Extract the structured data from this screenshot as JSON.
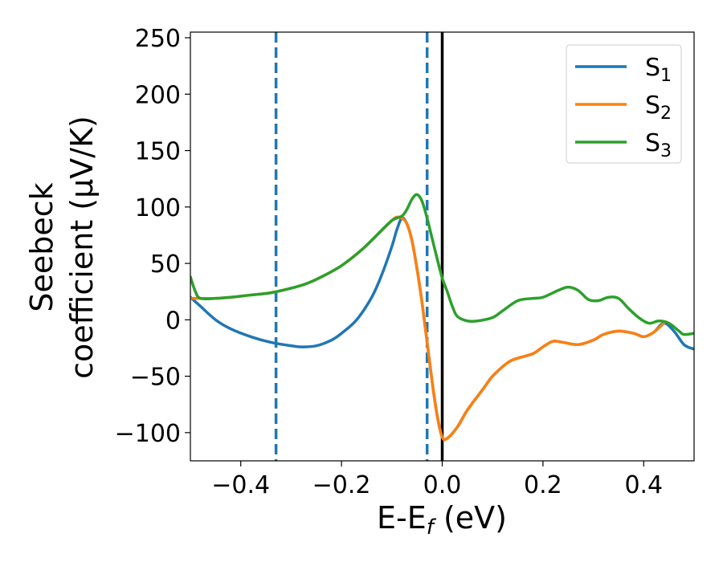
{
  "chart_data": {
    "type": "line",
    "xlabel_main": "E-E",
    "xlabel_sub": "f",
    "xlabel_unit": " (eV)",
    "ylabel_line1": "Seebeck",
    "ylabel_line2": "coefficient  (μV/K)",
    "xlim": [
      -0.5,
      0.5
    ],
    "ylim": [
      -125,
      255
    ],
    "xticks": [
      -0.4,
      -0.2,
      0.0,
      0.2,
      0.4
    ],
    "xtick_labels": [
      "−0.4",
      "−0.2",
      "0.0",
      "0.2",
      "0.4"
    ],
    "yticks": [
      -100,
      -50,
      0,
      50,
      100,
      150,
      200,
      250
    ],
    "ytick_labels": [
      "−100",
      "−50",
      "0",
      "50",
      "100",
      "150",
      "200",
      "250"
    ],
    "grid": false,
    "legend_position": "top-right",
    "vlines": [
      {
        "x": -0.33,
        "style": "dashed",
        "color": "#1f77b4"
      },
      {
        "x": -0.03,
        "style": "dashed",
        "color": "#1f77b4"
      },
      {
        "x": 0.0,
        "style": "solid",
        "color": "#000000"
      }
    ],
    "series": [
      {
        "name_main": "S",
        "name_sub": "1",
        "color": "#1f77b4",
        "points": [
          [
            -0.5,
            20
          ],
          [
            -0.48,
            12
          ],
          [
            -0.45,
            0
          ],
          [
            -0.42,
            -8
          ],
          [
            -0.38,
            -15
          ],
          [
            -0.34,
            -20
          ],
          [
            -0.3,
            -23
          ],
          [
            -0.28,
            -24
          ],
          [
            -0.25,
            -23
          ],
          [
            -0.22,
            -18
          ],
          [
            -0.2,
            -12
          ],
          [
            -0.17,
            0
          ],
          [
            -0.14,
            20
          ],
          [
            -0.12,
            40
          ],
          [
            -0.1,
            65
          ],
          [
            -0.09,
            80
          ],
          [
            -0.08,
            90
          ],
          [
            -0.07,
            85
          ],
          [
            -0.06,
            70
          ],
          [
            -0.05,
            45
          ],
          [
            -0.04,
            15
          ],
          [
            -0.03,
            -20
          ],
          [
            -0.02,
            -55
          ],
          [
            -0.01,
            -85
          ],
          [
            0.0,
            -104
          ],
          [
            0.01,
            -105
          ],
          [
            0.03,
            -95
          ],
          [
            0.05,
            -80
          ],
          [
            0.08,
            -62
          ],
          [
            0.1,
            -50
          ],
          [
            0.13,
            -38
          ],
          [
            0.15,
            -34
          ],
          [
            0.18,
            -30
          ],
          [
            0.2,
            -24
          ],
          [
            0.22,
            -19
          ],
          [
            0.24,
            -20
          ],
          [
            0.27,
            -22
          ],
          [
            0.3,
            -18
          ],
          [
            0.32,
            -13
          ],
          [
            0.35,
            -10
          ],
          [
            0.38,
            -12
          ],
          [
            0.4,
            -15
          ],
          [
            0.42,
            -11
          ],
          [
            0.44,
            -3
          ],
          [
            0.46,
            -10
          ],
          [
            0.48,
            -22
          ],
          [
            0.5,
            -26
          ]
        ]
      },
      {
        "name_main": "S",
        "name_sub": "2",
        "color": "#ff7f0e",
        "points": [
          [
            -0.5,
            19
          ],
          [
            -0.48,
            19
          ],
          [
            -0.45,
            19
          ],
          [
            -0.42,
            20
          ],
          [
            -0.38,
            22
          ],
          [
            -0.34,
            24
          ],
          [
            -0.3,
            28
          ],
          [
            -0.27,
            32
          ],
          [
            -0.24,
            38
          ],
          [
            -0.2,
            48
          ],
          [
            -0.16,
            62
          ],
          [
            -0.13,
            75
          ],
          [
            -0.1,
            88
          ],
          [
            -0.09,
            91
          ],
          [
            -0.08,
            90
          ],
          [
            -0.07,
            85
          ],
          [
            -0.06,
            70
          ],
          [
            -0.05,
            45
          ],
          [
            -0.04,
            15
          ],
          [
            -0.03,
            -20
          ],
          [
            -0.02,
            -55
          ],
          [
            -0.01,
            -85
          ],
          [
            0.0,
            -104
          ],
          [
            0.01,
            -105
          ],
          [
            0.03,
            -95
          ],
          [
            0.05,
            -80
          ],
          [
            0.08,
            -62
          ],
          [
            0.1,
            -50
          ],
          [
            0.13,
            -38
          ],
          [
            0.15,
            -34
          ],
          [
            0.18,
            -30
          ],
          [
            0.2,
            -24
          ],
          [
            0.22,
            -19
          ],
          [
            0.24,
            -20
          ],
          [
            0.27,
            -22
          ],
          [
            0.3,
            -18
          ],
          [
            0.32,
            -13
          ],
          [
            0.35,
            -10
          ],
          [
            0.38,
            -12
          ],
          [
            0.4,
            -15
          ],
          [
            0.42,
            -11
          ],
          [
            0.44,
            -3
          ]
        ]
      },
      {
        "name_main": "S",
        "name_sub": "3",
        "color": "#2ca02c",
        "points": [
          [
            -0.5,
            38
          ],
          [
            -0.49,
            25
          ],
          [
            -0.48,
            19
          ],
          [
            -0.45,
            19
          ],
          [
            -0.42,
            20
          ],
          [
            -0.38,
            22
          ],
          [
            -0.34,
            24
          ],
          [
            -0.3,
            28
          ],
          [
            -0.27,
            32
          ],
          [
            -0.24,
            38
          ],
          [
            -0.2,
            48
          ],
          [
            -0.16,
            62
          ],
          [
            -0.13,
            75
          ],
          [
            -0.1,
            88
          ],
          [
            -0.08,
            92
          ],
          [
            -0.07,
            98
          ],
          [
            -0.06,
            107
          ],
          [
            -0.05,
            111
          ],
          [
            -0.04,
            105
          ],
          [
            -0.03,
            90
          ],
          [
            -0.02,
            72
          ],
          [
            -0.01,
            54
          ],
          [
            0.0,
            37
          ],
          [
            0.01,
            25
          ],
          [
            0.02,
            12
          ],
          [
            0.03,
            3
          ],
          [
            0.05,
            -1
          ],
          [
            0.07,
            -1
          ],
          [
            0.1,
            2
          ],
          [
            0.12,
            8
          ],
          [
            0.15,
            17
          ],
          [
            0.18,
            19
          ],
          [
            0.2,
            20
          ],
          [
            0.23,
            26
          ],
          [
            0.25,
            29
          ],
          [
            0.27,
            26
          ],
          [
            0.29,
            18
          ],
          [
            0.31,
            17
          ],
          [
            0.33,
            20
          ],
          [
            0.35,
            19
          ],
          [
            0.37,
            10
          ],
          [
            0.39,
            2
          ],
          [
            0.41,
            -3
          ],
          [
            0.43,
            -1
          ],
          [
            0.45,
            -3
          ],
          [
            0.47,
            -10
          ],
          [
            0.48,
            -13
          ],
          [
            0.5,
            -12
          ]
        ]
      }
    ]
  }
}
